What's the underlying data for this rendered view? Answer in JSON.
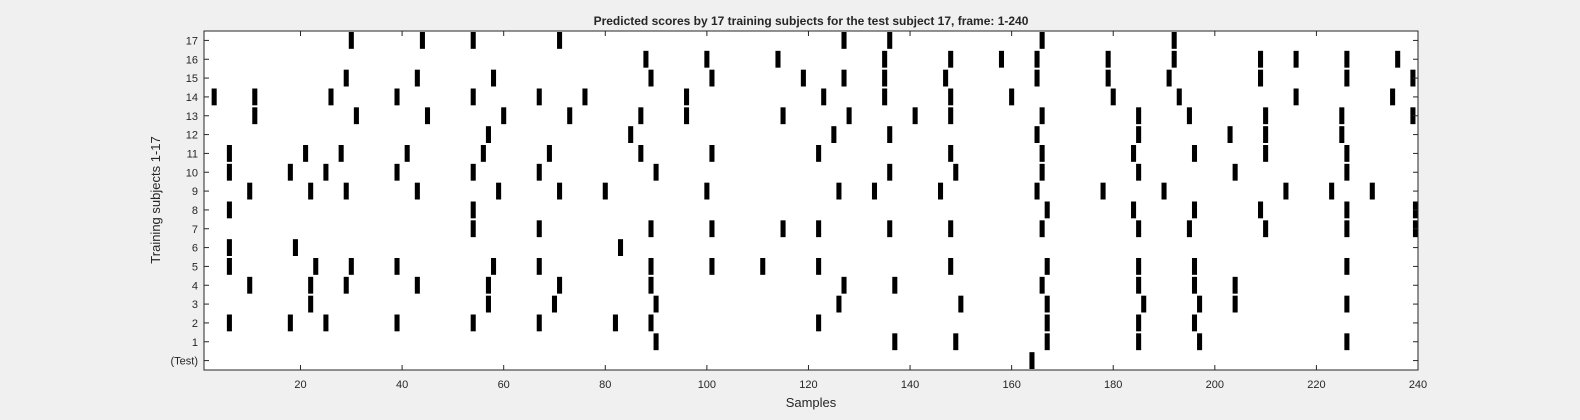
{
  "chart_data": {
    "type": "event-raster",
    "title": "Predicted scores by 17 training subjects for the test subject 17, frame: 1-240",
    "xlabel": "Samples",
    "ylabel": "Training subjects 1-17",
    "xlim": [
      1,
      240
    ],
    "xticks": [
      "20",
      "40",
      "60",
      "80",
      "100",
      "120",
      "140",
      "160",
      "180",
      "200",
      "220",
      "240"
    ],
    "rows": [
      "(Test)",
      "1",
      "2",
      "3",
      "4",
      "5",
      "6",
      "7",
      "8",
      "9",
      "10",
      "11",
      "12",
      "13",
      "14",
      "15",
      "16",
      "17"
    ],
    "grid": false,
    "legend": "none",
    "mark_color": "#000000",
    "events": {
      "(Test)": [
        164
      ],
      "1": [
        90,
        137,
        149,
        167,
        185,
        197,
        226
      ],
      "2": [
        6,
        18,
        25,
        39,
        54,
        67,
        82,
        89,
        122,
        167,
        185,
        196
      ],
      "3": [
        22,
        57,
        70,
        90,
        126,
        150,
        167,
        186,
        197,
        204,
        226
      ],
      "4": [
        10,
        22,
        29,
        43,
        57,
        71,
        89,
        127,
        137,
        166,
        185,
        196,
        204
      ],
      "5": [
        6,
        23,
        30,
        39,
        58,
        67,
        89,
        101,
        111,
        122,
        148,
        167,
        185,
        196,
        226
      ],
      "6": [
        6,
        19,
        83
      ],
      "7": [
        54,
        67,
        89,
        101,
        115,
        122,
        136,
        148,
        166,
        185,
        195,
        210,
        226,
        240
      ],
      "8": [
        6,
        54,
        167,
        184,
        196,
        209,
        226,
        240
      ],
      "9": [
        10,
        22,
        29,
        43,
        59,
        71,
        80,
        100,
        126,
        133,
        146,
        165,
        178,
        190,
        214,
        223,
        231
      ],
      "10": [
        6,
        18,
        25,
        39,
        54,
        67,
        90,
        136,
        149,
        166,
        185,
        204,
        226
      ],
      "11": [
        6,
        21,
        28,
        41,
        56,
        69,
        87,
        101,
        122,
        148,
        166,
        184,
        196,
        210,
        226
      ],
      "12": [
        57,
        85,
        125,
        136,
        165,
        185,
        203,
        210,
        225
      ],
      "13": [
        11,
        31,
        45,
        60,
        73,
        87,
        96,
        115,
        128,
        141,
        148,
        166,
        185,
        195,
        210,
        225,
        239
      ],
      "14": [
        3,
        11,
        26,
        39,
        54,
        67,
        76,
        96,
        123,
        135,
        148,
        160,
        180,
        193,
        216,
        235
      ],
      "15": [
        29,
        43,
        58,
        89,
        101,
        119,
        127,
        135,
        147,
        165,
        179,
        191,
        209,
        226,
        239
      ],
      "16": [
        88,
        100,
        114,
        135,
        148,
        158,
        165,
        179,
        192,
        209,
        216,
        226,
        236
      ],
      "17": [
        30,
        44,
        54,
        71,
        127,
        136,
        166,
        192
      ]
    }
  }
}
